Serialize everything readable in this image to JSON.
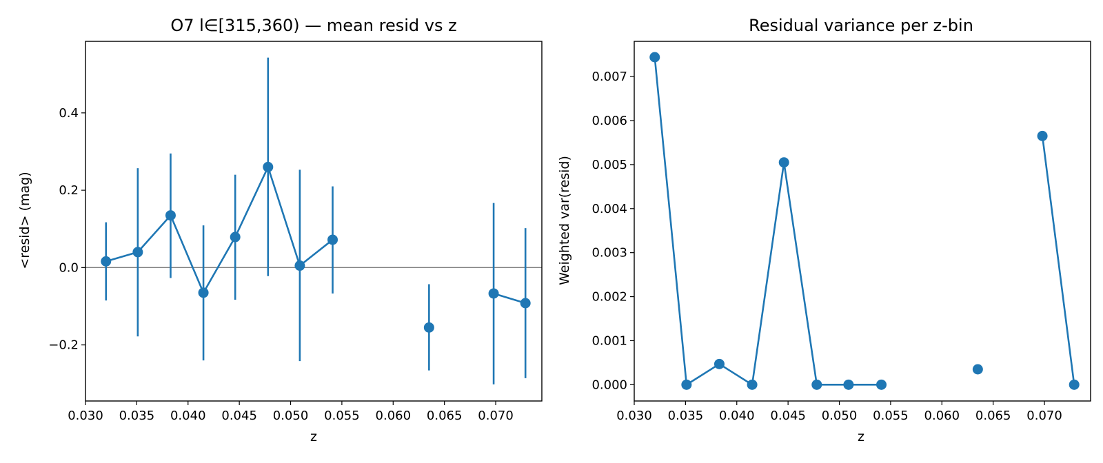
{
  "chart_data": [
    {
      "type": "line",
      "title": "O7 l∈[315,360) — mean resid vs z",
      "xlabel": "z",
      "ylabel": "<resid> (mag)",
      "xlim": [
        0.03,
        0.0745
      ],
      "ylim": [
        -0.345,
        0.585
      ],
      "xticks": [
        0.03,
        0.035,
        0.04,
        0.045,
        0.05,
        0.055,
        0.06,
        0.065,
        0.07
      ],
      "xtick_labels": [
        "0.030",
        "0.035",
        "0.040",
        "0.045",
        "0.050",
        "0.055",
        "0.060",
        "0.065",
        "0.070"
      ],
      "yticks": [
        -0.2,
        0.0,
        0.2,
        0.4
      ],
      "ytick_labels": [
        "−0.2",
        "0.0",
        "0.2",
        "0.4"
      ],
      "reference_line_y": 0,
      "series": [
        {
          "x": [
            0.032,
            0.0351,
            0.0383,
            0.0415,
            0.0446,
            0.0478,
            0.0509,
            0.0541,
            0.0635,
            0.0698,
            0.0729
          ],
          "y": [
            0.016,
            0.04,
            0.135,
            -0.065,
            0.079,
            0.26,
            0.005,
            0.072,
            -0.155,
            -0.067,
            -0.092
          ],
          "yerr_low": [
            -0.085,
            -0.178,
            -0.027,
            -0.24,
            -0.083,
            -0.022,
            -0.242,
            -0.067,
            -0.266,
            -0.302,
            -0.286
          ],
          "yerr_high": [
            0.117,
            0.257,
            0.295,
            0.109,
            0.24,
            0.543,
            0.253,
            0.21,
            -0.043,
            0.167,
            0.102
          ],
          "connected_through_index": 7
        }
      ],
      "grid": false,
      "color": "#1f77b4"
    },
    {
      "type": "line",
      "title": "Residual variance per z-bin",
      "xlabel": "z",
      "ylabel": "Weighted var(resid)",
      "xlim": [
        0.03,
        0.0745
      ],
      "ylim": [
        -0.00037,
        0.0078
      ],
      "xticks": [
        0.03,
        0.035,
        0.04,
        0.045,
        0.05,
        0.055,
        0.06,
        0.065,
        0.07
      ],
      "xtick_labels": [
        "0.030",
        "0.035",
        "0.040",
        "0.045",
        "0.050",
        "0.055",
        "0.060",
        "0.065",
        "0.070"
      ],
      "yticks": [
        0,
        0.001,
        0.002,
        0.003,
        0.004,
        0.005,
        0.006,
        0.007
      ],
      "ytick_labels": [
        "0.000",
        "0.001",
        "0.002",
        "0.003",
        "0.004",
        "0.005",
        "0.006",
        "0.007"
      ],
      "series": [
        {
          "x": [
            0.032,
            0.0351,
            0.0383,
            0.0415,
            0.0446,
            0.0478,
            0.0509,
            0.0541,
            0.0635,
            0.0698,
            0.0729
          ],
          "y": [
            0.00744,
            0.0,
            0.00047,
            0.0,
            0.00505,
            0.0,
            0.0,
            0.0,
            0.00035,
            0.00565,
            0.0
          ],
          "connected_through_index": 7
        }
      ],
      "grid": false,
      "color": "#1f77b4"
    }
  ]
}
